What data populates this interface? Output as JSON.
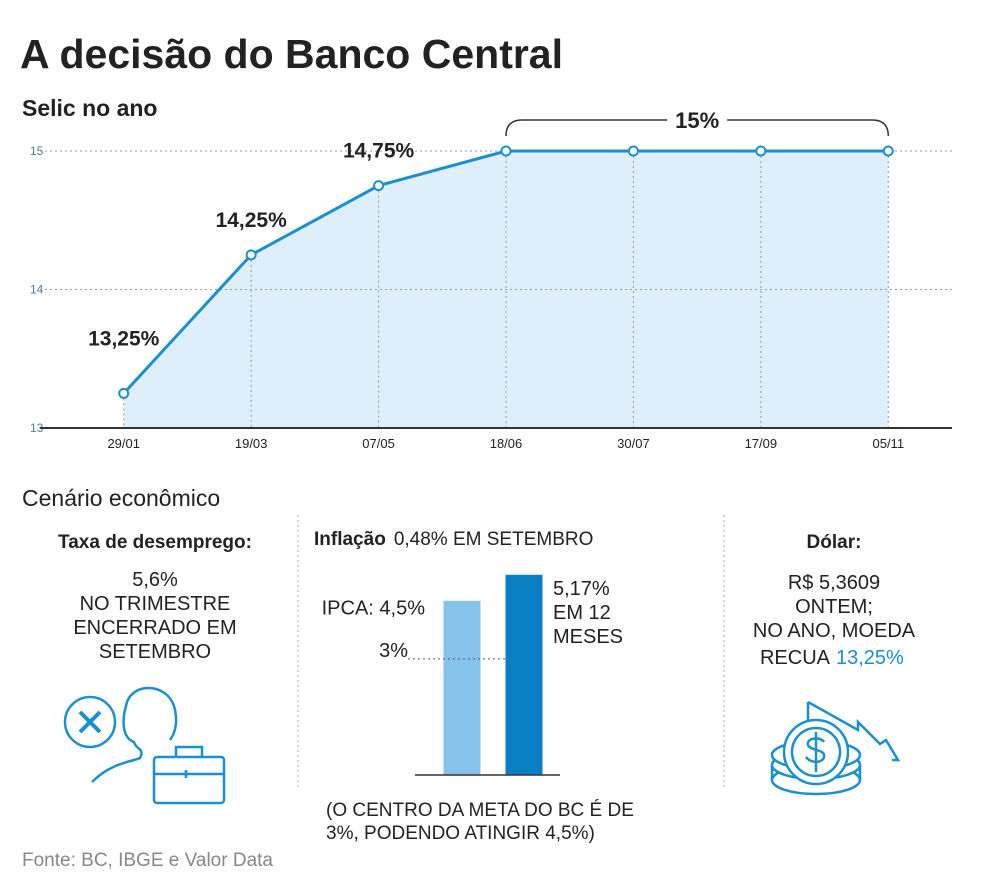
{
  "title": "A decisão do Banco Central",
  "chart_data": [
    {
      "type": "line",
      "title": "Selic no ano",
      "categories": [
        "29/01",
        "19/03",
        "07/05",
        "18/06",
        "30/07",
        "17/09",
        "05/11"
      ],
      "values": [
        13.25,
        14.25,
        14.75,
        15,
        15,
        15,
        15
      ],
      "value_labels": [
        "13,25%",
        "14,25%",
        "14,75%",
        null,
        null,
        null,
        null
      ],
      "annotation": "15%",
      "color": "#1a8fd1",
      "fill": "#deeefa",
      "ylim": [
        13,
        15
      ],
      "yticks": [
        13,
        14,
        15
      ],
      "grid": true
    },
    {
      "type": "bar",
      "title": "Inflação",
      "subtitle": "0,48% EM SETEMBRO",
      "categories": [
        null,
        null
      ],
      "values": [
        4.5,
        5.17
      ],
      "value_labels": [
        "IPCA: 4,5%",
        "5,17%\nEM 12\nMESES"
      ],
      "colors": [
        "#86c3ea",
        "#0a7fc4"
      ],
      "reference_line": 3,
      "reference_label": "3%",
      "note": "(O CENTRO DA META DO BC É DE\n3%, PODENDO ATINGIR 4,5%)",
      "ylim": [
        0,
        5.5
      ]
    }
  ],
  "section_title": "Cenário econômico",
  "unemployment": {
    "title": "Taxa de desemprego:",
    "text": "5,6%\nNO TRIMESTRE\nENCERRADO EM\nSETEMBRO"
  },
  "dollar": {
    "title": "Dólar:",
    "text": "R$ 5,3609\nONTEM;\nNO ANO, MOEDA",
    "last_line": "RECUA",
    "highlight": "13,25%"
  },
  "source": "Fonte: BC, IBGE e Valor Data"
}
